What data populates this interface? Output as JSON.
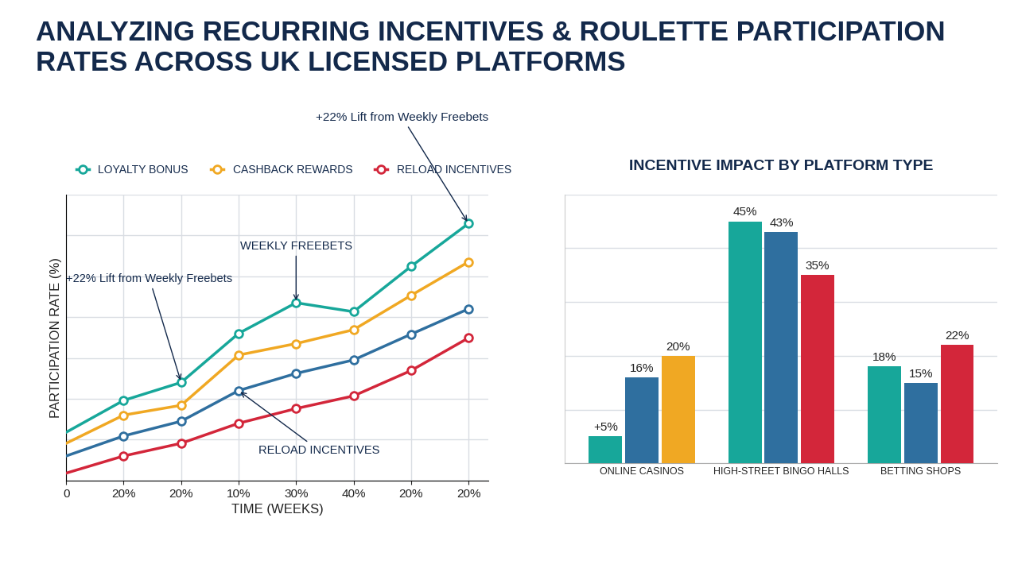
{
  "title": "ANALYZING RECURRING INCENTIVES & ROULETTE PARTICIPATION RATES ACROSS UK LICENSED PLATFORMS",
  "chart_data": [
    {
      "type": "line",
      "x_label": "TIME (WEEKS)",
      "y_label": "PARTICIPATION RATE (%)",
      "categories": [
        "0",
        "20%",
        "20%",
        "10%",
        "30%",
        "40%",
        "20%",
        "20%"
      ],
      "ylim": [
        0,
        70
      ],
      "yticks": [
        0,
        10,
        20,
        30,
        40,
        50,
        60,
        70
      ],
      "tick_labels": "x",
      "grid": true,
      "legend": "upper left",
      "marker": "o",
      "annotations": [
        "+22% Lift from Weekly Freebets",
        "WEEKLY FREEBETS",
        "+22% Lift from Weekly Freebets",
        "RELOAD INCENTIVES"
      ],
      "series": [
        {
          "name": "LOYALTY BONUS",
          "color": "#17a79a",
          "values": [
            11.8,
            19.6,
            24.0,
            36.0,
            43.5,
            41.3,
            52.4,
            62.9
          ]
        },
        {
          "name": "CASHBACK REWARDS",
          "color": "#f0a823",
          "values": [
            9.1,
            16.0,
            18.4,
            30.7,
            33.5,
            36.9,
            45.3,
            53.5
          ]
        },
        {
          "color": "#2f6f9f",
          "values": [
            6.0,
            10.9,
            14.5,
            22.0,
            26.2,
            29.5,
            35.8,
            42.0
          ]
        },
        {
          "name": "RELOAD INCENTIVES",
          "color": "#d3263a",
          "values": [
            1.8,
            6.0,
            9.1,
            14.0,
            17.6,
            20.7,
            26.9,
            34.9
          ]
        }
      ]
    },
    {
      "type": "bar",
      "title": "INCENTIVE IMPACT BY PLATFORM TYPE",
      "categories": [
        "ONLINE CASINOS",
        "HIGH-STREET BINGO HALLS",
        "BETTING SHOPS"
      ],
      "ylim": [
        0,
        50
      ],
      "yticks": [
        0,
        10,
        20,
        30,
        40,
        50
      ],
      "tick_labels": "x",
      "grid": true,
      "data_labels": true,
      "series": [
        {
          "color": "#17a79a",
          "values": [
            5,
            45,
            18
          ],
          "value_labels": [
            "+5%",
            "45%",
            "18%"
          ]
        },
        {
          "color": "#2f6f9f",
          "values": [
            16,
            43,
            15
          ],
          "value_labels": [
            "16%",
            "43%",
            "15%"
          ]
        },
        {
          "colors": [
            "#f0a823",
            "#d3263a",
            "#d3263a"
          ],
          "values": [
            20,
            35,
            22
          ],
          "value_labels": [
            "20%",
            "35%",
            "22%"
          ]
        }
      ]
    }
  ]
}
